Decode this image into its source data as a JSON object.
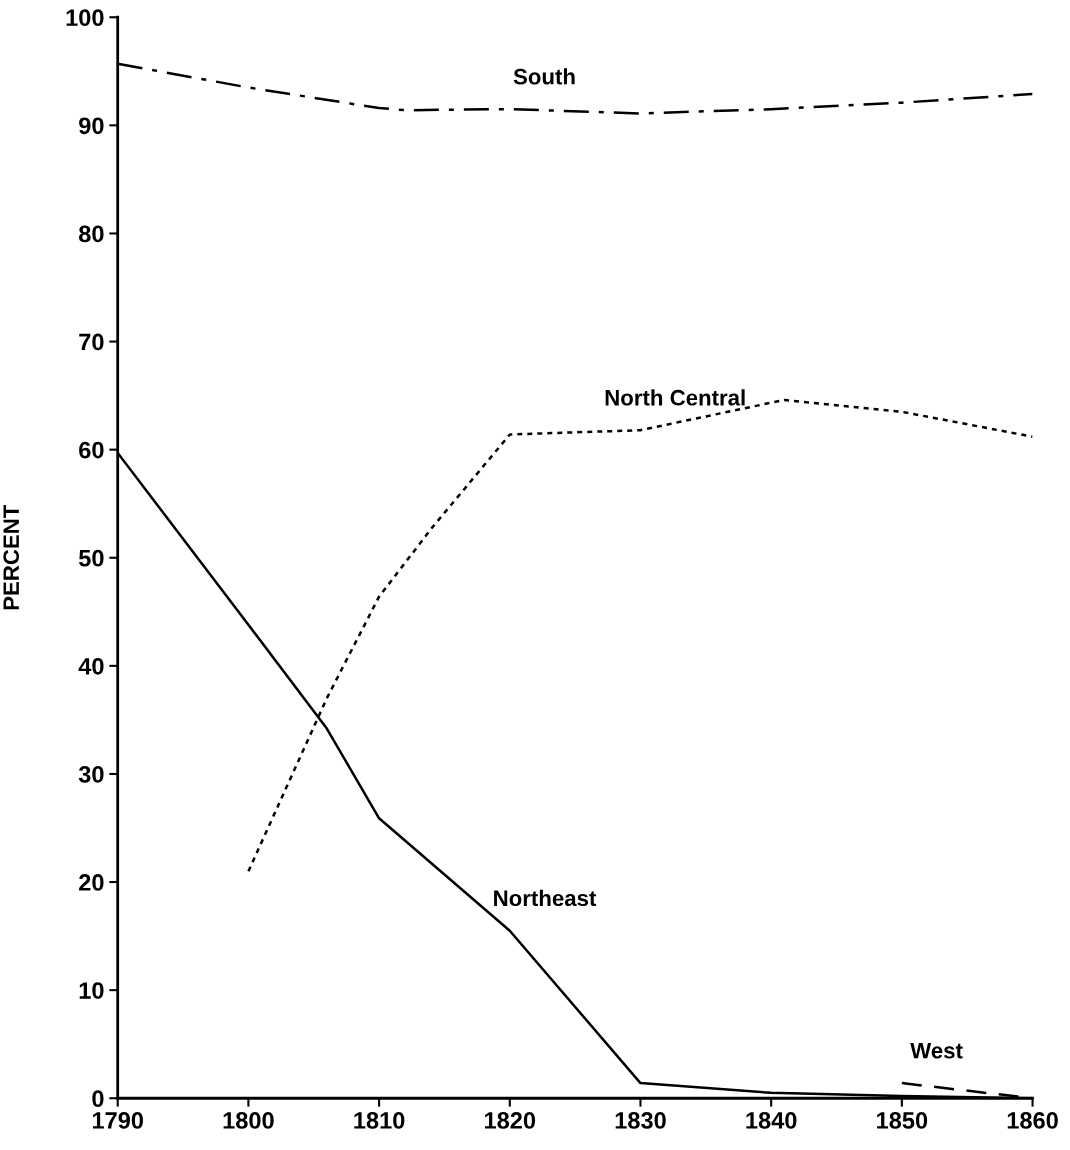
{
  "chart_data": {
    "type": "line",
    "ylabel": "PERCENT",
    "xlim": [
      1790,
      1860
    ],
    "xticks": [
      1790,
      1800,
      1810,
      1820,
      1830,
      1840,
      1850,
      1860
    ],
    "ylim": [
      0,
      100
    ],
    "yticks": [
      0,
      10,
      20,
      30,
      40,
      50,
      60,
      70,
      80,
      90,
      100
    ],
    "grid": false,
    "series": [
      {
        "name": "South",
        "color": "#000000",
        "line_style": "dashdot",
        "x": [
          1790,
          1800,
          1810,
          1812,
          1820,
          1830,
          1840,
          1850,
          1860
        ],
        "values": [
          95.7,
          93.5,
          91.6,
          91.4,
          91.5,
          91.1,
          91.5,
          92.1,
          92.9
        ]
      },
      {
        "name": "North Central",
        "color": "#000000",
        "line_style": "dotted",
        "x": [
          1800,
          1806,
          1810,
          1814,
          1820,
          1830,
          1841,
          1850,
          1860
        ],
        "values": [
          21.0,
          37.0,
          46.4,
          52.7,
          61.4,
          61.8,
          64.6,
          63.5,
          61.2
        ]
      },
      {
        "name": "Northeast",
        "color": "#000000",
        "line_style": "solid",
        "x": [
          1790,
          1800,
          1806,
          1810,
          1820,
          1830,
          1840,
          1850,
          1860
        ],
        "values": [
          59.7,
          43.8,
          34.2,
          25.9,
          15.5,
          1.4,
          0.5,
          0.2,
          0
        ]
      },
      {
        "name": "West",
        "color": "#000000",
        "line_style": "dashed",
        "x": [
          1850,
          1860
        ],
        "values": [
          1.4,
          0
        ]
      }
    ]
  }
}
